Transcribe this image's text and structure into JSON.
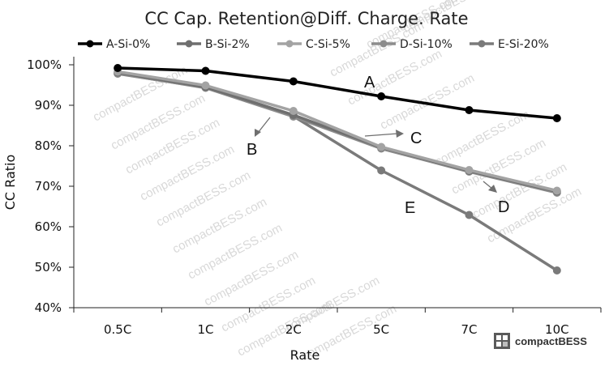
{
  "chart_data": {
    "type": "line",
    "title": "CC Cap. Retention@Diff. Charge. Rate",
    "xlabel": "Rate",
    "ylabel": "CC Ratio",
    "categories": [
      "0.5C",
      "1C",
      "2C",
      "5C",
      "7C",
      "10C"
    ],
    "ylim": [
      40,
      100
    ],
    "yticks": [
      "40%",
      "50%",
      "60%",
      "70%",
      "80%",
      "90%",
      "100%"
    ],
    "ytick_values": [
      40,
      50,
      60,
      70,
      80,
      90,
      100
    ],
    "grid": false,
    "legend_position": "top",
    "series": [
      {
        "name": "A-Si-0%",
        "color": "#000000",
        "values": [
          99.2,
          98.5,
          95.9,
          92.2,
          88.8,
          86.8
        ]
      },
      {
        "name": "B-Si-2%",
        "color": "#6f6f6f",
        "values": [
          98.1,
          94.5,
          87.6,
          79.6,
          73.8,
          68.7
        ]
      },
      {
        "name": "C-Si-5%",
        "color": "#a3a3a3",
        "values": [
          98.3,
          94.9,
          88.6,
          79.7,
          74.0,
          68.9
        ]
      },
      {
        "name": "D-Si-10%",
        "color": "#8c8c8c",
        "values": [
          97.9,
          94.3,
          87.2,
          79.3,
          73.6,
          68.4
        ]
      },
      {
        "name": "E-Si-20%",
        "color": "#7a7a7a",
        "values": [
          97.8,
          94.4,
          87.3,
          73.9,
          62.9,
          49.2
        ]
      }
    ],
    "annotations": [
      "A",
      "B",
      "C",
      "D",
      "E"
    ]
  },
  "watermark": "compactBESS.com",
  "brand": {
    "text": "compactBESS",
    "icon": "grid-logo-icon"
  }
}
